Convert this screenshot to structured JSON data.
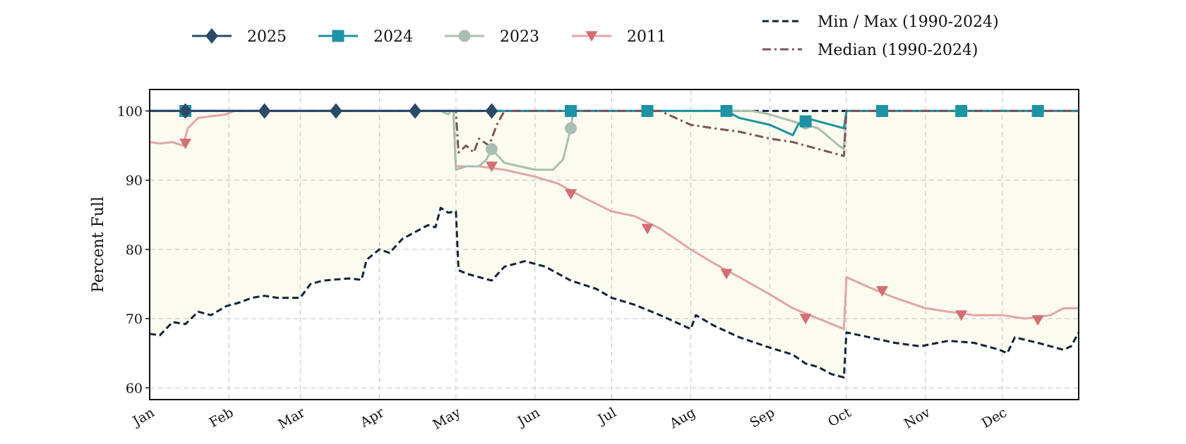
{
  "chart_data": {
    "type": "line",
    "title": "",
    "xlabel": "",
    "ylabel": "Percent Full",
    "ylim": [
      58.3,
      103.1
    ],
    "xlim": [
      "Jan 1",
      "Dec 31"
    ],
    "x_ticks": [
      "Jan",
      "Feb",
      "Mar",
      "Apr",
      "May",
      "Jun",
      "Jul",
      "Aug",
      "Sep",
      "Oct",
      "Nov",
      "Dec"
    ],
    "y_ticks": [
      60,
      70,
      80,
      90,
      100
    ],
    "grid": true,
    "legend_placement": "top",
    "band": {
      "name": "Min / Max (1990-2024)",
      "fill_color": "#fbfbf0"
    },
    "series": [
      {
        "name": "Min / Max (1990-2024)",
        "role": "max",
        "color": "#13233a",
        "style": "dashed",
        "points": [
          [
            "Jan 1",
            100
          ],
          [
            "Dec 31",
            100
          ]
        ]
      },
      {
        "name": "Min / Max (1990-2024)",
        "role": "min",
        "color": "#13233a",
        "style": "dashed",
        "points": [
          [
            "Jan 1",
            67.8
          ],
          [
            "Jan 5",
            67.6
          ],
          [
            "Jan 10",
            69.5
          ],
          [
            "Jan 15",
            69.2
          ],
          [
            "Jan 20",
            71
          ],
          [
            "Jan 25",
            70.5
          ],
          [
            "Jan 31",
            71.8
          ],
          [
            "Feb 5",
            72.3
          ],
          [
            "Feb 10",
            73
          ],
          [
            "Feb 15",
            73.3
          ],
          [
            "Feb 20",
            73
          ],
          [
            "Feb 25",
            73
          ],
          [
            "Mar 1",
            73
          ],
          [
            "Mar 5",
            75
          ],
          [
            "Mar 10",
            75.5
          ],
          [
            "Mar 20",
            75.8
          ],
          [
            "Mar 25",
            75.6
          ],
          [
            "Mar 27",
            78.5
          ],
          [
            "Apr 1",
            80
          ],
          [
            "Apr 5",
            79.5
          ],
          [
            "Apr 10",
            81.5
          ],
          [
            "Apr 15",
            82.5
          ],
          [
            "Apr 20",
            83.5
          ],
          [
            "Apr 23",
            83.2
          ],
          [
            "Apr 25",
            86
          ],
          [
            "Apr 28",
            85.3
          ],
          [
            "May 1",
            85.5
          ],
          [
            "May 2",
            77
          ],
          [
            "May 5",
            76.5
          ],
          [
            "May 15",
            75.5
          ],
          [
            "May 20",
            77.5
          ],
          [
            "May 28",
            78.3
          ],
          [
            "Jun 5",
            77.5
          ],
          [
            "Jun 15",
            75.5
          ],
          [
            "Jun 25",
            74.3
          ],
          [
            "Jul 1",
            73
          ],
          [
            "Jul 10",
            72
          ],
          [
            "Jul 20",
            70.5
          ],
          [
            "Aug 1",
            68.5
          ],
          [
            "Aug 3",
            70.5
          ],
          [
            "Aug 10",
            69
          ],
          [
            "Aug 20",
            67.3
          ],
          [
            "Sep 1",
            65.8
          ],
          [
            "Sep 10",
            64.8
          ],
          [
            "Sep 15",
            63.5
          ],
          [
            "Sep 20",
            63
          ],
          [
            "Sep 25",
            62
          ],
          [
            "Sep 30",
            61.5
          ],
          [
            "Oct 1",
            68
          ],
          [
            "Oct 10",
            67.3
          ],
          [
            "Oct 20",
            66.5
          ],
          [
            "Oct 30",
            66
          ],
          [
            "Nov 10",
            66.8
          ],
          [
            "Nov 20",
            66.5
          ],
          [
            "Nov 30",
            65.5
          ],
          [
            "Dec 3",
            65
          ],
          [
            "Dec 6",
            67.3
          ],
          [
            "Dec 15",
            66.5
          ],
          [
            "Dec 25",
            65.5
          ],
          [
            "Dec 28",
            66
          ],
          [
            "Dec 31",
            68
          ]
        ]
      },
      {
        "name": "Median (1990-2024)",
        "color": "#7a555c",
        "style": "dashdot",
        "points": [
          [
            "Jan 1",
            100
          ],
          [
            "May 1",
            100
          ],
          [
            "May 2",
            94
          ],
          [
            "May 5",
            95
          ],
          [
            "May 8",
            94
          ],
          [
            "May 10",
            96
          ],
          [
            "May 14",
            95
          ],
          [
            "May 17",
            98
          ],
          [
            "May 20",
            100
          ],
          [
            "Jul 20",
            100
          ],
          [
            "Aug 1",
            98
          ],
          [
            "Aug 10",
            97.5
          ],
          [
            "Aug 20",
            97
          ],
          [
            "Sep 1",
            96
          ],
          [
            "Sep 10",
            95.5
          ],
          [
            "Sep 20",
            94.5
          ],
          [
            "Sep 30",
            93.5
          ],
          [
            "Oct 1",
            100
          ],
          [
            "Dec 31",
            100
          ]
        ]
      },
      {
        "name": "2011",
        "color": "#d36e74",
        "line_color": "#e3a6a5",
        "marker": "triangle-down",
        "points": [
          [
            "Jan 1",
            95.5
          ],
          [
            "Jan 5",
            95.3
          ],
          [
            "Jan 10",
            95.5
          ],
          [
            "Jan 14",
            95
          ],
          [
            "Jan 16",
            97.5
          ],
          [
            "Jan 20",
            99
          ],
          [
            "Jan 31",
            99.5
          ],
          [
            "Feb 3",
            100
          ],
          [
            "Apr 20",
            100
          ],
          [
            "Apr 30",
            100
          ],
          [
            "May 1",
            92
          ],
          [
            "May 10",
            92
          ],
          [
            "May 20",
            91.5
          ],
          [
            "Jun 1",
            90.5
          ],
          [
            "Jun 10",
            89.5
          ],
          [
            "Jun 20",
            87.5
          ],
          [
            "Jul 1",
            85.5
          ],
          [
            "Jul 10",
            84.8
          ],
          [
            "Jul 20",
            83
          ],
          [
            "Aug 1",
            80
          ],
          [
            "Aug 10",
            78
          ],
          [
            "Aug 20",
            76
          ],
          [
            "Sep 1",
            73.5
          ],
          [
            "Sep 10",
            71.5
          ],
          [
            "Sep 20",
            70
          ],
          [
            "Sep 30",
            68.5
          ],
          [
            "Oct 1",
            76
          ],
          [
            "Oct 10",
            74.5
          ],
          [
            "Oct 20",
            73
          ],
          [
            "Nov 1",
            71.5
          ],
          [
            "Nov 10",
            71
          ],
          [
            "Nov 20",
            70.5
          ],
          [
            "Dec 1",
            70.5
          ],
          [
            "Dec 10",
            70
          ],
          [
            "Dec 20",
            70.5
          ],
          [
            "Dec 25",
            71.5
          ],
          [
            "Dec 31",
            71.5
          ]
        ],
        "marker_points": [
          [
            "Jan 15",
            95.3
          ],
          [
            "May 15",
            92
          ],
          [
            "Jun 15",
            88
          ],
          [
            "Jul 15",
            83
          ],
          [
            "Aug 15",
            76.5
          ],
          [
            "Sep 15",
            70
          ],
          [
            "Oct 15",
            74
          ],
          [
            "Nov 15",
            70.5
          ],
          [
            "Dec 15",
            69.8
          ]
        ]
      },
      {
        "name": "2023",
        "color": "#a9bfb2",
        "marker": "circle",
        "points": [
          [
            "Jan 1",
            100
          ],
          [
            "Apr 25",
            100
          ],
          [
            "Apr 28",
            99.5
          ],
          [
            "Apr 29",
            100
          ],
          [
            "Apr 30",
            100
          ],
          [
            "May 1",
            91.5
          ],
          [
            "May 5",
            92
          ],
          [
            "May 10",
            92
          ],
          [
            "May 13",
            93
          ],
          [
            "May 15",
            94.5
          ],
          [
            "May 20",
            92.5
          ],
          [
            "Jun 1",
            91.5
          ],
          [
            "Jun 8",
            91.5
          ],
          [
            "Jun 12",
            93
          ],
          [
            "Jun 15",
            97.5
          ],
          [
            "Jun 16",
            100
          ],
          [
            "Aug 15",
            100
          ],
          [
            "Aug 25",
            100
          ],
          [
            "Sep 1",
            99.5
          ],
          [
            "Sep 10",
            98.5
          ],
          [
            "Sep 20",
            97.5
          ],
          [
            "Sep 28",
            95
          ],
          [
            "Sep 30",
            94.5
          ],
          [
            "Oct 1",
            100
          ],
          [
            "Dec 31",
            100
          ]
        ],
        "marker_points": [
          [
            "May 15",
            94.5
          ],
          [
            "Jun 15",
            97.5
          ],
          [
            "Sep 15",
            98.2
          ]
        ]
      },
      {
        "name": "2024",
        "color": "#1d93a3",
        "marker": "square",
        "points": [
          [
            "Jan 1",
            100
          ],
          [
            "Aug 15",
            100
          ],
          [
            "Aug 20",
            99
          ],
          [
            "Sep 1",
            98
          ],
          [
            "Sep 10",
            96.5
          ],
          [
            "Sep 12",
            98
          ],
          [
            "Sep 15",
            99
          ],
          [
            "Sep 20",
            98.5
          ],
          [
            "Sep 30",
            97.5
          ],
          [
            "Oct 1",
            100
          ],
          [
            "Dec 31",
            100
          ]
        ],
        "marker_points": [
          [
            "Jan 15",
            100
          ],
          [
            "Jun 15",
            100
          ],
          [
            "Jul 15",
            100
          ],
          [
            "Aug 15",
            100
          ],
          [
            "Sep 15",
            98.5
          ],
          [
            "Oct 15",
            100
          ],
          [
            "Nov 15",
            100
          ],
          [
            "Dec 15",
            100
          ]
        ]
      },
      {
        "name": "2025",
        "color": "#2c4a67",
        "marker": "diamond",
        "points": [
          [
            "Jan 1",
            100
          ],
          [
            "May 15",
            100
          ]
        ],
        "marker_points": [
          [
            "Jan 15",
            100
          ],
          [
            "Feb 15",
            100
          ],
          [
            "Mar 15",
            100
          ],
          [
            "Apr 15",
            100
          ],
          [
            "May 15",
            100
          ]
        ]
      }
    ],
    "legend": [
      {
        "label": "2025",
        "series": "2025"
      },
      {
        "label": "2024",
        "series": "2024"
      },
      {
        "label": "2023",
        "series": "2023"
      },
      {
        "label": "2011",
        "series": "2011"
      },
      {
        "label": "Min / Max (1990-2024)",
        "series": "Min / Max (1990-2024)"
      },
      {
        "label": "Median (1990-2024)",
        "series": "Median (1990-2024)"
      }
    ]
  }
}
